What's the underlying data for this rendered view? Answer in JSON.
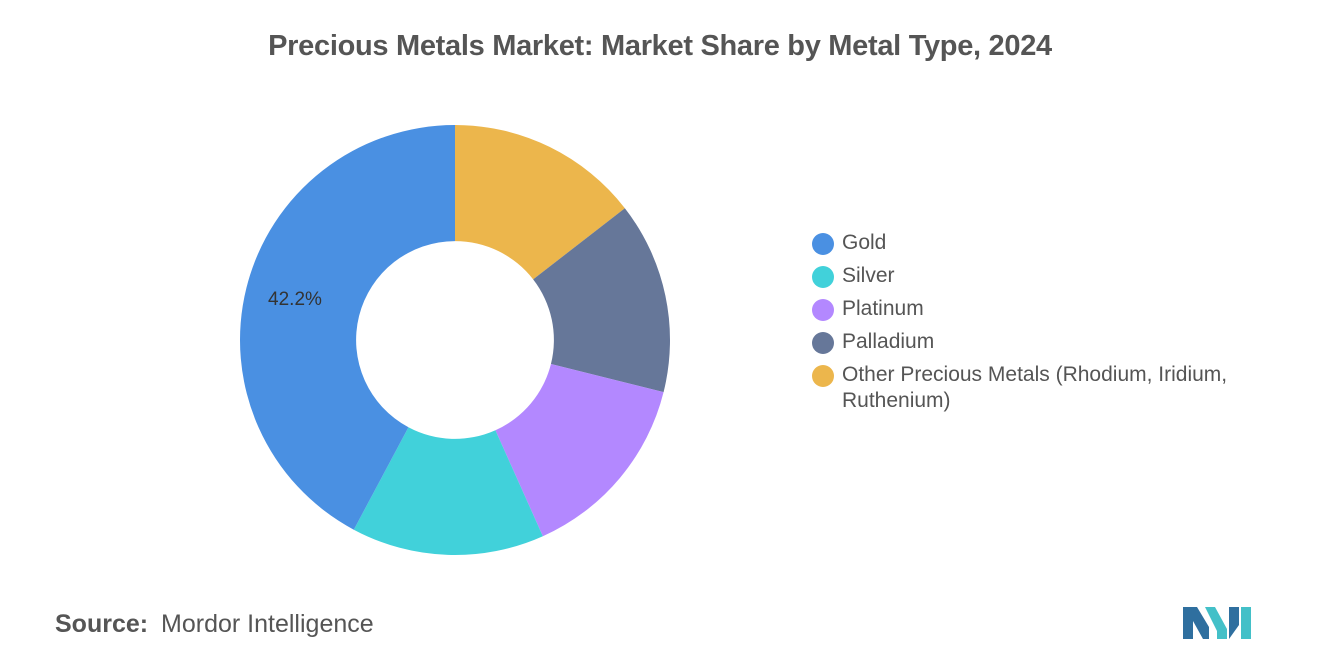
{
  "chart_data": {
    "type": "pie",
    "title": "Precious Metals Market: Market Share by Metal Type, 2024",
    "categories": [
      "Gold",
      "Silver",
      "Platinum",
      "Palladium",
      "Other Precious Metals (Rhodium, Iridium, Ruthenium)"
    ],
    "values": [
      42.2,
      14.5,
      14.4,
      14.4,
      14.5
    ],
    "colors": [
      "#4a90e2",
      "#41d1da",
      "#b388ff",
      "#667799",
      "#ecb64c"
    ],
    "data_labels": [
      "42.2%",
      "",
      "",
      "",
      ""
    ],
    "hole_ratio": 0.46,
    "legend_position": "right"
  },
  "footer": {
    "source_label": "Source:",
    "source_text": "Mordor Intelligence"
  },
  "logo": {
    "icon": "mordor-intelligence-logo-icon",
    "color_left": "#2f6f9f",
    "color_right": "#43c0c8"
  }
}
